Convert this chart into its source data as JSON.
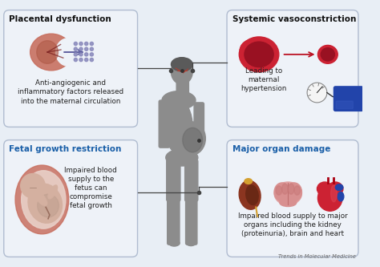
{
  "background_color": "#e8eef5",
  "panel_bg_color": "#eef2f8",
  "panel_border_color": "#b0bcd0",
  "title_top_left": "Placental dysfunction",
  "title_top_right": "Systemic vasoconstriction",
  "title_bottom_left": "Fetal growth restriction",
  "title_bottom_right": "Major organ damage",
  "text_top_left": "Anti-angiogenic and\ninflammatory factors released\ninto the maternal circulation",
  "text_top_right": "Leading to\nmaternal\nhypertension",
  "text_bottom_left": "Impaired blood\nsupply to the\nfetus can\ncompromise\nfetal growth",
  "text_bottom_right": "Impaired blood supply to major\norgans including the kidney\n(proteinuria), brain and heart",
  "footer": "Trends in Molecular Medicine",
  "title_color_top": "#111111",
  "title_color_bottom": "#1a5fa8",
  "body_text_color": "#222222",
  "footer_color": "#666666",
  "silhouette_color": "#8c8c8c",
  "line_color": "#444444"
}
